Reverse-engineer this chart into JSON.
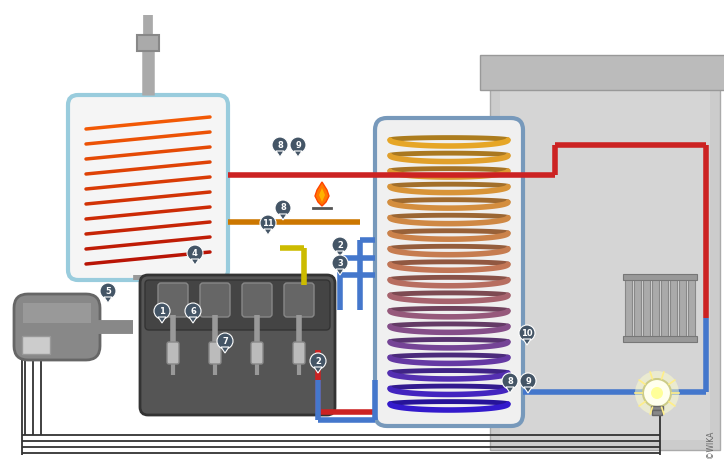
{
  "bg_color": "#ffffff",
  "pipe_red": "#cc2222",
  "pipe_blue": "#4477cc",
  "pipe_orange": "#cc7700",
  "pipe_yellow": "#ccbb00",
  "pipe_black": "#333333",
  "boiler_border": "#99ccdd",
  "tank_border": "#7799bb",
  "marker_fill": "#445566",
  "building_color": "#cccccc",
  "building_dark": "#aaaaaa"
}
